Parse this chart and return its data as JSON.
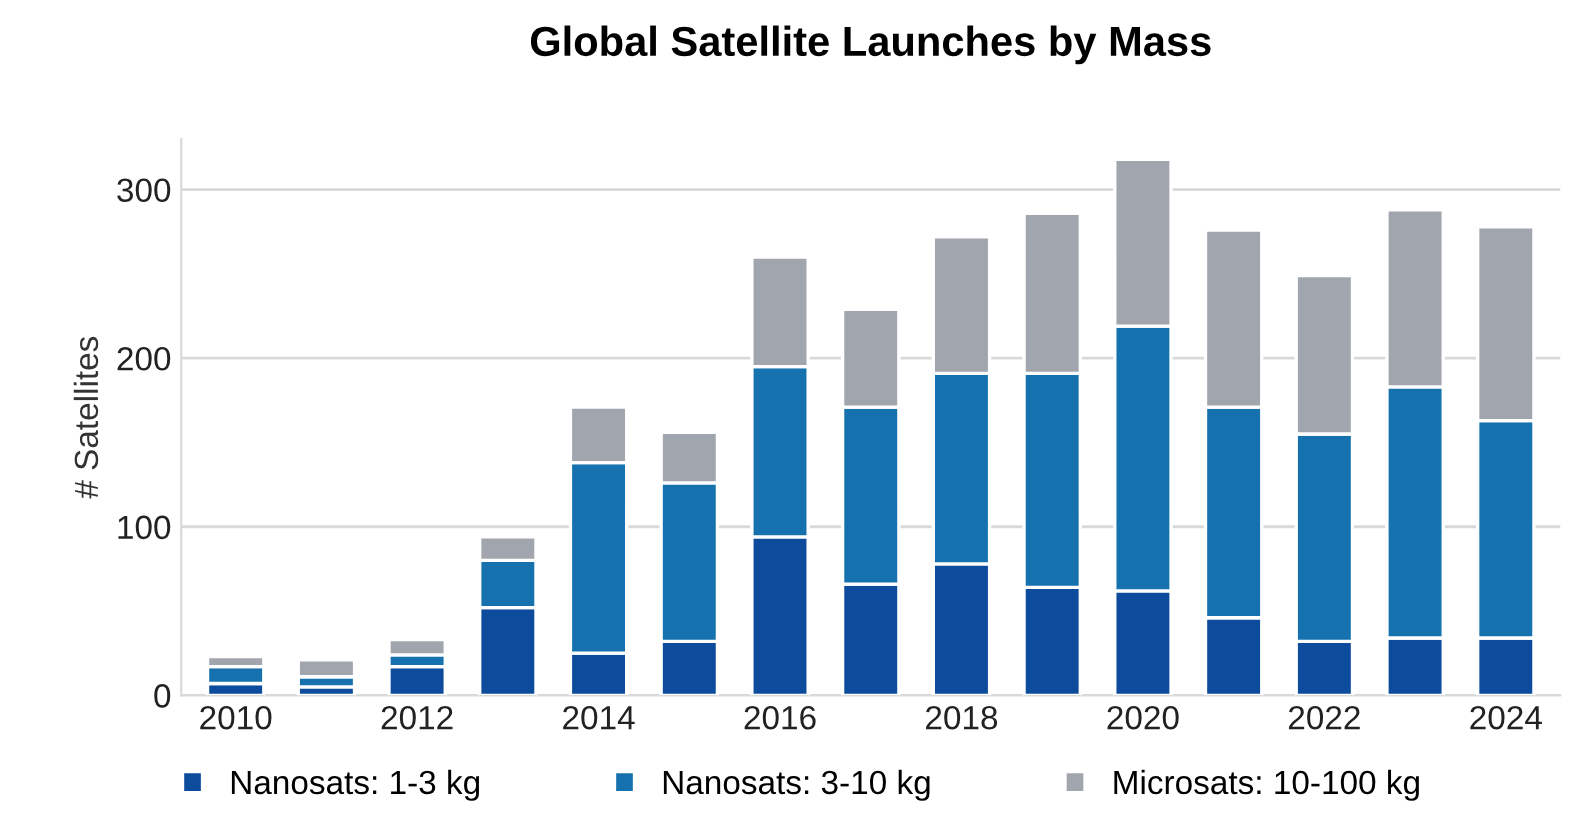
{
  "chart_data": {
    "type": "bar",
    "title": "Global Satellite Launches by Mass",
    "ylabel": "# Satellites",
    "categories": [
      "2010",
      null,
      "2012",
      null,
      "2014",
      null,
      "2016",
      null,
      "2018",
      null,
      "2020",
      null,
      "2022",
      null,
      "2024"
    ],
    "stacked": true,
    "ylim": [
      0,
      330
    ],
    "yticks": [
      0,
      100,
      200,
      300
    ],
    "grid": "y",
    "legend": "bottom",
    "series": [
      {
        "name": "Nanosats: 1-3 kg",
        "color": "#0d4c9c",
        "values": [
          7,
          5,
          17,
          52,
          25,
          32,
          94,
          66,
          78,
          64,
          62,
          46,
          32,
          34,
          34
        ]
      },
      {
        "name": "Nanosats: 3-10 kg",
        "color": "#1672ae",
        "values": [
          10,
          6,
          7,
          28,
          113,
          94,
          101,
          105,
          113,
          127,
          157,
          125,
          123,
          149,
          129
        ]
      },
      {
        "name": "Microsats: 10-100 kg",
        "color": "#a0a5ae",
        "values": [
          6,
          10,
          9,
          14,
          33,
          30,
          65,
          58,
          81,
          95,
          99,
          105,
          94,
          105,
          115
        ]
      }
    ]
  }
}
